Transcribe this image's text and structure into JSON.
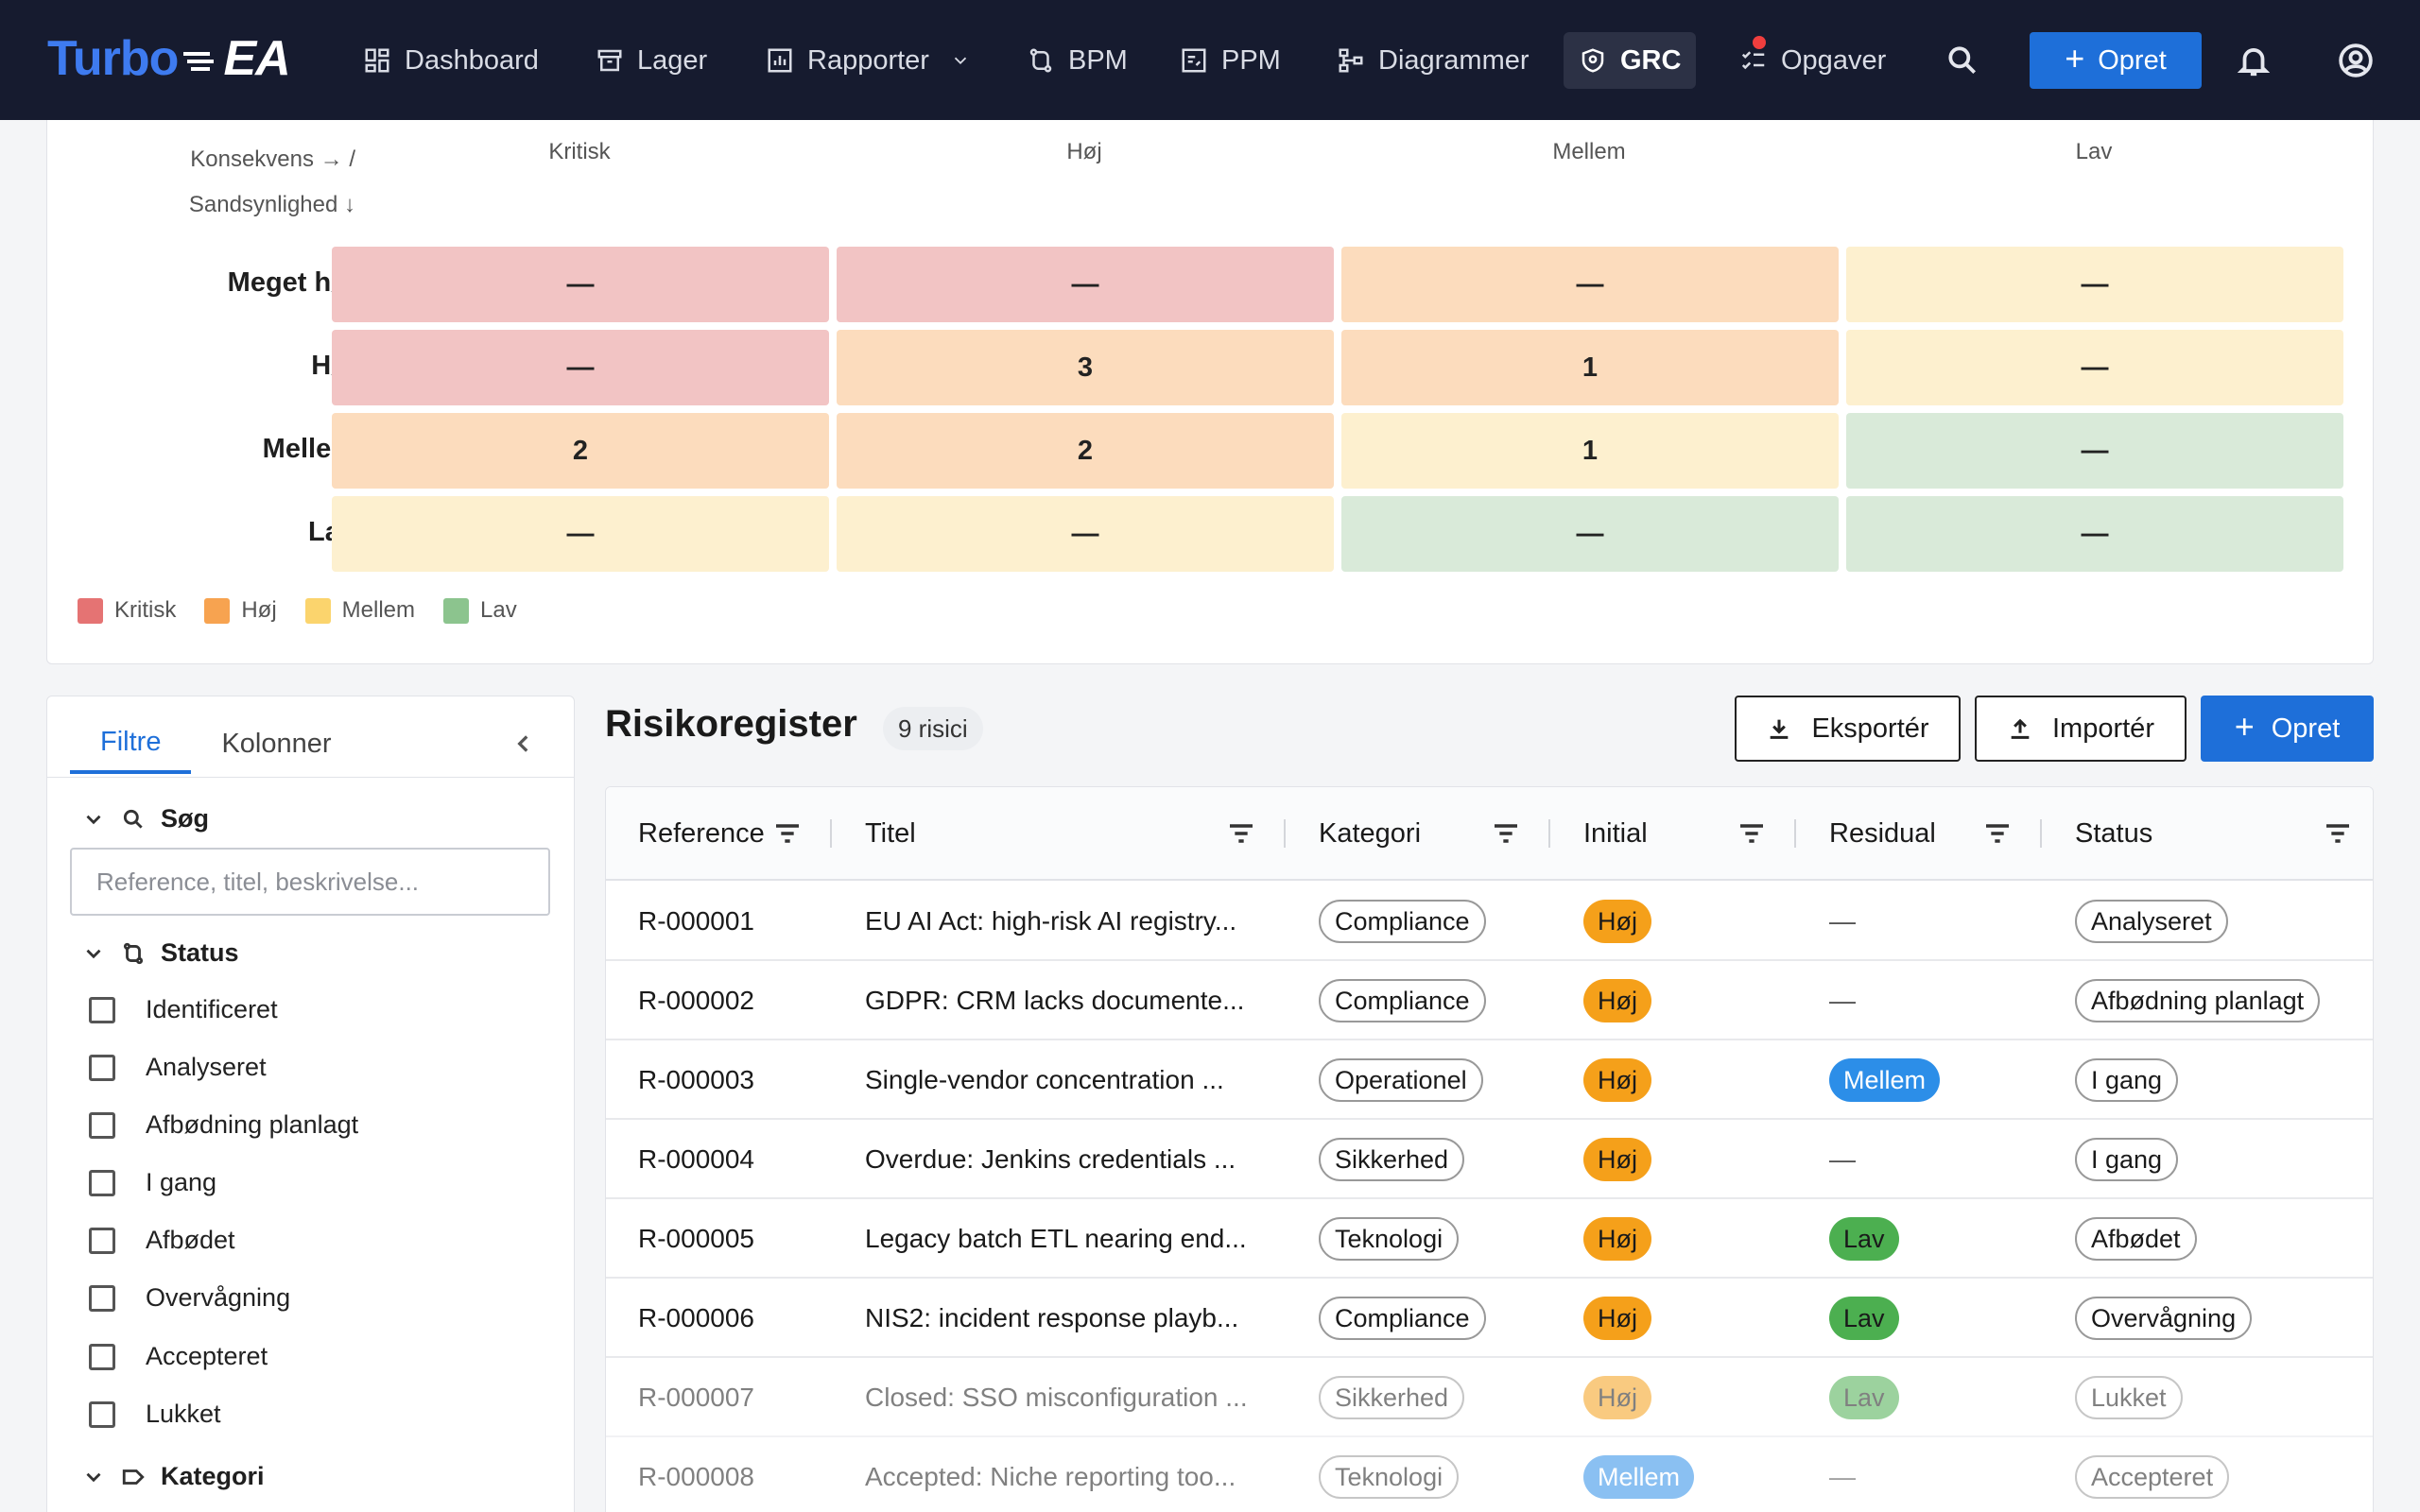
{
  "nav": {
    "logo_part1": "Turbo",
    "logo_part2": "EA",
    "items": [
      {
        "label": "Dashboard",
        "icon": "dashboard-icon"
      },
      {
        "label": "Lager",
        "icon": "archive-icon"
      },
      {
        "label": "Rapporter",
        "icon": "report-icon"
      },
      {
        "label": "BPM",
        "icon": "flow-icon"
      },
      {
        "label": "PPM",
        "icon": "ppm-icon"
      },
      {
        "label": "Diagrammer",
        "icon": "diagram-icon"
      },
      {
        "label": "GRC",
        "icon": "shield-icon"
      },
      {
        "label": "Opgaver",
        "icon": "tasks-icon"
      }
    ],
    "create_label": "Opret"
  },
  "heatmap": {
    "axis_label_1": "Konsekvens → /",
    "axis_label_2": "Sandsynlighed ↓",
    "columns": [
      "Kritisk",
      "Høj",
      "Mellem",
      "Lav"
    ],
    "rows": [
      {
        "label": "Meget høj",
        "cells": [
          "—",
          "—",
          "—",
          "—"
        ],
        "levels": [
          "crit",
          "crit",
          "high",
          "med"
        ]
      },
      {
        "label": "Høj",
        "cells": [
          "—",
          "3",
          "1",
          "—"
        ],
        "levels": [
          "crit",
          "high",
          "high",
          "med"
        ]
      },
      {
        "label": "Mellem",
        "cells": [
          "2",
          "2",
          "1",
          "—"
        ],
        "levels": [
          "high",
          "high",
          "med",
          "low"
        ]
      },
      {
        "label": "Lav",
        "cells": [
          "—",
          "—",
          "—",
          "—"
        ],
        "levels": [
          "med",
          "med",
          "low",
          "low"
        ]
      }
    ],
    "legend": [
      {
        "label": "Kritisk",
        "color": "#e57373"
      },
      {
        "label": "Høj",
        "color": "#f7a350"
      },
      {
        "label": "Mellem",
        "color": "#fbd46d"
      },
      {
        "label": "Lav",
        "color": "#8cc48e"
      }
    ]
  },
  "filters": {
    "tab_filters": "Filtre",
    "tab_columns": "Kolonner",
    "search_section": "Søg",
    "search_placeholder": "Reference, titel, beskrivelse...",
    "status_section": "Status",
    "statuses": [
      "Identificeret",
      "Analyseret",
      "Afbødning planlagt",
      "I gang",
      "Afbødet",
      "Overvågning",
      "Accepteret",
      "Lukket"
    ],
    "category_section": "Kategori"
  },
  "register": {
    "title": "Risikoregister",
    "count": "9 risici",
    "export_label": "Eksportér",
    "import_label": "Importér",
    "create_label": "Opret",
    "columns": {
      "reference": "Reference",
      "title": "Titel",
      "category": "Kategori",
      "initial": "Initial",
      "residual": "Residual",
      "status": "Status"
    },
    "rows": [
      {
        "ref": "R-000001",
        "title": "EU AI Act: high-risk AI registry...",
        "category": "Compliance",
        "initial": "Høj",
        "residual": "—",
        "status": "Analyseret"
      },
      {
        "ref": "R-000002",
        "title": "GDPR: CRM lacks documente...",
        "category": "Compliance",
        "initial": "Høj",
        "residual": "—",
        "status": "Afbødning planlagt"
      },
      {
        "ref": "R-000003",
        "title": "Single-vendor concentration ...",
        "category": "Operationel",
        "initial": "Høj",
        "residual": "Mellem",
        "status": "I gang"
      },
      {
        "ref": "R-000004",
        "title": "Overdue: Jenkins credentials ...",
        "category": "Sikkerhed",
        "initial": "Høj",
        "residual": "—",
        "status": "I gang"
      },
      {
        "ref": "R-000005",
        "title": "Legacy batch ETL nearing end...",
        "category": "Teknologi",
        "initial": "Høj",
        "residual": "Lav",
        "status": "Afbødet"
      },
      {
        "ref": "R-000006",
        "title": "NIS2: incident response playb...",
        "category": "Compliance",
        "initial": "Høj",
        "residual": "Lav",
        "status": "Overvågning"
      },
      {
        "ref": "R-000007",
        "title": "Closed: SSO misconfiguration ...",
        "category": "Sikkerhed",
        "initial": "Høj",
        "residual": "Lav",
        "status": "Lukket"
      },
      {
        "ref": "R-000008",
        "title": "Accepted: Niche reporting too...",
        "category": "Teknologi",
        "initial": "Mellem",
        "residual": "—",
        "status": "Accepteret"
      }
    ]
  },
  "colors": {
    "accent": "#1e6fd9",
    "level_high": "#f5a01a",
    "level_medium": "#2c8ee8",
    "level_low": "#4caf50"
  }
}
